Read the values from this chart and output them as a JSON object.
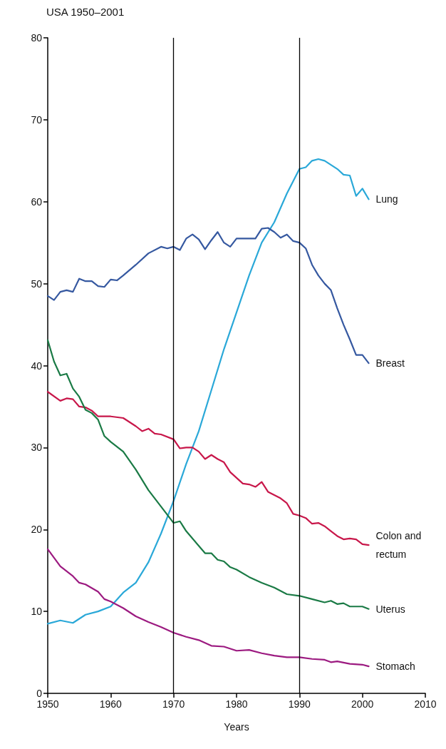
{
  "chart_data": {
    "type": "line",
    "title": "USA 1950–2001",
    "xlabel": "Years",
    "xlim": [
      1950,
      2010
    ],
    "xticks": [
      1950,
      1960,
      1970,
      1980,
      1990,
      2000,
      2010
    ],
    "ylim": [
      0,
      80
    ],
    "yticks": [
      0,
      10,
      20,
      30,
      40,
      50,
      60,
      70,
      80
    ],
    "grid": false,
    "legend": false,
    "marker": "none",
    "line_style": "solid",
    "ref_lines": [
      {
        "axis": "x",
        "value": 1970,
        "color": "#000000"
      },
      {
        "axis": "x",
        "value": 1990,
        "color": "#000000"
      }
    ],
    "series": [
      {
        "name": "Lung",
        "color": "#2aa8d8",
        "x": [
          1950,
          1952,
          1954,
          1956,
          1958,
          1960,
          1962,
          1964,
          1966,
          1968,
          1970,
          1972,
          1974,
          1976,
          1978,
          1980,
          1982,
          1984,
          1986,
          1988,
          1990,
          1991,
          1992,
          1993,
          1994,
          1996,
          1997,
          1998,
          1999,
          2000,
          2001
        ],
        "values": [
          8.5,
          8.9,
          8.6,
          9.6,
          10.0,
          10.6,
          12.3,
          13.5,
          16,
          19.5,
          23.5,
          28,
          32,
          37,
          42,
          46.5,
          51,
          55,
          57.5,
          61,
          64,
          64.2,
          65,
          65.2,
          65,
          64,
          63.3,
          63.2,
          60.7,
          61.6,
          60.3
        ]
      },
      {
        "name": "Breast",
        "color": "#3558a0",
        "x": [
          1950,
          1951,
          1952,
          1953,
          1954,
          1955,
          1956,
          1957,
          1958,
          1959,
          1960,
          1961,
          1962,
          1964,
          1966,
          1968,
          1969,
          1970,
          1971,
          1972,
          1973,
          1974,
          1975,
          1976,
          1977,
          1978,
          1979,
          1980,
          1982,
          1983,
          1984,
          1985,
          1986,
          1987,
          1988,
          1989,
          1990,
          1991,
          1992,
          1993,
          1994,
          1995,
          1996,
          1997,
          1998,
          1999,
          2000,
          2001
        ],
        "values": [
          48.5,
          48,
          49,
          49.2,
          49,
          50.6,
          50.3,
          50.3,
          49.7,
          49.6,
          50.5,
          50.4,
          51,
          52.3,
          53.7,
          54.5,
          54.3,
          54.5,
          54.1,
          55.5,
          56,
          55.4,
          54.2,
          55.3,
          56.3,
          55,
          54.5,
          55.5,
          55.5,
          55.5,
          56.7,
          56.8,
          56.3,
          55.6,
          56,
          55.2,
          55,
          54.3,
          52.3,
          51,
          50,
          49.2,
          47,
          45,
          43.2,
          41.3,
          41.3,
          40.3
        ]
      },
      {
        "name": "Colon and rectum",
        "color": "#c8174a",
        "x": [
          1950,
          1952,
          1953,
          1954,
          1955,
          1956,
          1957,
          1958,
          1960,
          1962,
          1964,
          1965,
          1966,
          1967,
          1968,
          1970,
          1971,
          1972,
          1973,
          1974,
          1975,
          1976,
          1977,
          1978,
          1979,
          1980,
          1981,
          1982,
          1983,
          1984,
          1985,
          1986,
          1987,
          1988,
          1989,
          1990,
          1991,
          1992,
          1993,
          1994,
          1995,
          1996,
          1997,
          1998,
          1999,
          2000,
          2001
        ],
        "values": [
          36.8,
          35.7,
          36,
          35.9,
          35,
          34.9,
          34.5,
          33.8,
          33.8,
          33.6,
          32.6,
          32,
          32.3,
          31.7,
          31.6,
          31,
          29.9,
          30,
          30,
          29.5,
          28.6,
          29.1,
          28.6,
          28.2,
          27,
          26.3,
          25.6,
          25.5,
          25.2,
          25.8,
          24.6,
          24.2,
          23.8,
          23.2,
          21.9,
          21.7,
          21.4,
          20.7,
          20.8,
          20.4,
          19.8,
          19.2,
          18.8,
          18.9,
          18.8,
          18.2,
          18.1
        ]
      },
      {
        "name": "Uterus",
        "color": "#1a7a45",
        "x": [
          1950,
          1951,
          1952,
          1953,
          1954,
          1955,
          1956,
          1957,
          1958,
          1959,
          1960,
          1962,
          1964,
          1966,
          1968,
          1970,
          1971,
          1972,
          1974,
          1975,
          1976,
          1977,
          1978,
          1979,
          1980,
          1982,
          1984,
          1986,
          1988,
          1990,
          1992,
          1994,
          1995,
          1996,
          1997,
          1998,
          2000,
          2001
        ],
        "values": [
          43.1,
          40.5,
          38.8,
          39,
          37.2,
          36.2,
          34.6,
          34.2,
          33.4,
          31.4,
          30.7,
          29.5,
          27.3,
          24.8,
          22.8,
          20.8,
          21,
          19.8,
          18,
          17.1,
          17.1,
          16.3,
          16.1,
          15.4,
          15.1,
          14.2,
          13.5,
          12.9,
          12.1,
          11.9,
          11.5,
          11.1,
          11.3,
          10.9,
          11,
          10.6,
          10.6,
          10.3
        ]
      },
      {
        "name": "Stomach",
        "color": "#9c1a80",
        "x": [
          1950,
          1952,
          1954,
          1955,
          1956,
          1958,
          1959,
          1960,
          1962,
          1964,
          1966,
          1968,
          1970,
          1972,
          1974,
          1976,
          1978,
          1980,
          1982,
          1984,
          1986,
          1988,
          1990,
          1992,
          1994,
          1995,
          1996,
          1998,
          2000,
          2001
        ],
        "values": [
          17.6,
          15.5,
          14.3,
          13.5,
          13.3,
          12.4,
          11.5,
          11.2,
          10.4,
          9.4,
          8.7,
          8.1,
          7.4,
          6.9,
          6.5,
          5.8,
          5.7,
          5.2,
          5.3,
          4.9,
          4.6,
          4.4,
          4.4,
          4.2,
          4.1,
          3.8,
          3.9,
          3.6,
          3.5,
          3.3
        ]
      }
    ]
  }
}
